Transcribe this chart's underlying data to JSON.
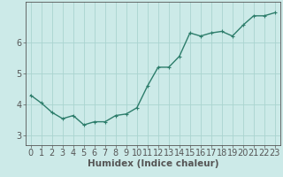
{
  "x": [
    0,
    1,
    2,
    3,
    4,
    5,
    6,
    7,
    8,
    9,
    10,
    11,
    12,
    13,
    14,
    15,
    16,
    17,
    18,
    19,
    20,
    21,
    22,
    23
  ],
  "y": [
    4.3,
    4.05,
    3.75,
    3.55,
    3.65,
    3.35,
    3.45,
    3.45,
    3.65,
    3.7,
    3.9,
    4.6,
    5.2,
    5.2,
    5.55,
    6.3,
    6.2,
    6.3,
    6.35,
    6.2,
    6.55,
    6.85,
    6.85,
    6.95
  ],
  "line_color": "#2d7d6b",
  "marker": "+",
  "marker_color": "#2d7d6b",
  "bg_color": "#cceae8",
  "grid_color": "#aad4d0",
  "axis_color": "#555555",
  "xlabel": "Humidex (Indice chaleur)",
  "xlabel_fontsize": 7.5,
  "xlim": [
    -0.5,
    23.5
  ],
  "ylim": [
    2.7,
    7.3
  ],
  "yticks": [
    3,
    4,
    5,
    6
  ],
  "xticks": [
    0,
    1,
    2,
    3,
    4,
    5,
    6,
    7,
    8,
    9,
    10,
    11,
    12,
    13,
    14,
    15,
    16,
    17,
    18,
    19,
    20,
    21,
    22,
    23
  ],
  "tick_fontsize": 7,
  "linewidth": 1.0,
  "markersize": 3.5
}
